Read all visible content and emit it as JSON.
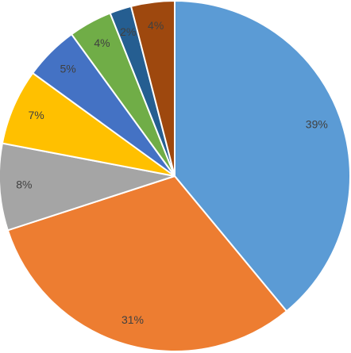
{
  "chart_data": {
    "type": "pie",
    "values": [
      39,
      31,
      8,
      7,
      5,
      4,
      2,
      4
    ],
    "value_labels": [
      "39%",
      "31%",
      "8%",
      "7%",
      "5%",
      "4%",
      "2%",
      "4%"
    ],
    "colors": [
      "#5b9bd5",
      "#ed7d31",
      "#a5a5a5",
      "#ffc000",
      "#4472c4",
      "#70ad47",
      "#255e91",
      "#9e480e"
    ]
  }
}
